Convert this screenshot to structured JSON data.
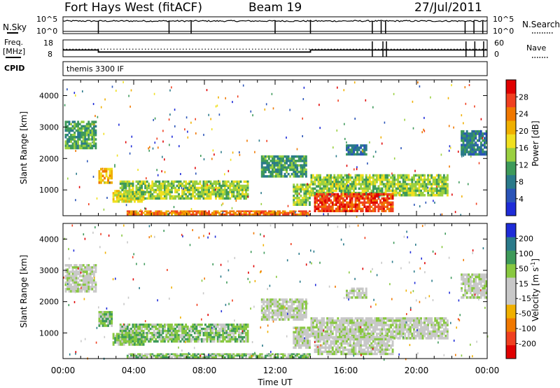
{
  "header": {
    "title": "Fort Hays West (fitACF)",
    "beam": "Beam 19",
    "date": "27/Jul/2011"
  },
  "top_panels": {
    "sky": {
      "left_label": "N.Sky",
      "right_label": "N.Search",
      "ytick_top": "10^5",
      "ytick_bottom": "10^0"
    },
    "freq": {
      "left_label_1": "Freq.",
      "left_label_2": "[MHz]",
      "left_ticks": [
        "18",
        "8"
      ],
      "right_label": "Nave",
      "right_ticks": [
        "60",
        "0"
      ]
    },
    "cpid": {
      "left_label": "CPID",
      "text": "themis 3300 IF"
    }
  },
  "colors": {
    "power_scale": [
      "#0000ff",
      "#1e48b4",
      "#2a7a8a",
      "#3e9a5a",
      "#9ad040",
      "#f0e020",
      "#f0b000",
      "#f07800",
      "#f04020",
      "#e00000"
    ],
    "velocity_scale": [
      "#0000ff",
      "#1e48b4",
      "#2a7a8a",
      "#3e9a5a",
      "#88c840",
      "#c8c8c8",
      "#f0b000",
      "#f07800",
      "#f04020",
      "#e00000"
    ]
  },
  "chart_data": [
    {
      "type": "line",
      "panel": "N.Sky / N.Search",
      "ylim_labels": [
        "10^0",
        "10^5"
      ],
      "x_hours": [
        0,
        2,
        6,
        7.25,
        12,
        14,
        17.5,
        18,
        18.25,
        22.75,
        23.25,
        23.75,
        24
      ],
      "series": [
        {
          "name": "N.Sky",
          "values": [
            4,
            4,
            4,
            4,
            4,
            4,
            4,
            4,
            4,
            4,
            4,
            4,
            4
          ]
        },
        {
          "name": "N.Search",
          "values": [
            0.3,
            0.3,
            0.3,
            0.3,
            0.3,
            0.3,
            0.3,
            0.3,
            0.3,
            0.3,
            0.3,
            0.3,
            0.3
          ]
        }
      ]
    },
    {
      "type": "line",
      "panel": "Freq. / Nave",
      "xlim": [
        "00:00",
        "24:00"
      ],
      "freq_ylim": [
        8,
        18
      ],
      "nave_ylim": [
        0,
        60
      ],
      "series": [
        {
          "name": "Freq. [MHz]",
          "x_hours": [
            0,
            2,
            2,
            14,
            14,
            24
          ],
          "values": [
            12,
            12,
            10.8,
            10.8,
            12,
            12
          ]
        },
        {
          "name": "Nave",
          "x_hours": [
            0,
            24
          ],
          "values": [
            27,
            27
          ]
        }
      ]
    },
    {
      "type": "heatmap",
      "panel": "Power",
      "xlabel": "Time UT",
      "ylabel": "Slant Range [km]",
      "colorbar_label": "Power [dB]",
      "colorbar_ticks": [
        "28",
        "24",
        "20",
        "16",
        "12",
        "8",
        "4"
      ],
      "xticks": [
        "00:00",
        "04:00",
        "08:00",
        "12:00",
        "16:00",
        "20:00",
        "00:00"
      ],
      "yticks": [
        1000,
        2000,
        3000,
        4000
      ],
      "xlim_hours": [
        0,
        24
      ],
      "ylim": [
        180,
        4500
      ],
      "regions": [
        {
          "t0": 0.1,
          "t1": 1.9,
          "r0": 2300,
          "r1": 3200,
          "level": 3
        },
        {
          "t0": 2.0,
          "t1": 2.8,
          "r0": 1200,
          "r1": 1700,
          "level": 6
        },
        {
          "t0": 2.8,
          "t1": 4.6,
          "r0": 600,
          "r1": 1000,
          "level": 5
        },
        {
          "t0": 3.2,
          "t1": 10.5,
          "r0": 700,
          "r1": 1300,
          "level": 4
        },
        {
          "t0": 3.6,
          "t1": 14.0,
          "r0": 200,
          "r1": 350,
          "level": 7
        },
        {
          "t0": 11.2,
          "t1": 13.8,
          "r0": 1400,
          "r1": 2100,
          "level": 3
        },
        {
          "t0": 13.0,
          "t1": 14.0,
          "r0": 500,
          "r1": 1200,
          "level": 4
        },
        {
          "t0": 14.0,
          "t1": 21.8,
          "r0": 800,
          "r1": 1500,
          "level": 4
        },
        {
          "t0": 14.2,
          "t1": 18.7,
          "r0": 300,
          "r1": 900,
          "level": 8
        },
        {
          "t0": 16.0,
          "t1": 17.2,
          "r0": 2100,
          "r1": 2450,
          "level": 2
        },
        {
          "t0": 22.5,
          "t1": 24.0,
          "r0": 2100,
          "r1": 2900,
          "level": 2
        }
      ]
    },
    {
      "type": "heatmap",
      "panel": "Velocity",
      "xlabel": "Time UT",
      "ylabel": "Slant Range [km]",
      "colorbar_label": "Velocity [m s^-1]",
      "colorbar_ticks": [
        "200",
        "100",
        "50",
        "15",
        "-15",
        "-50",
        "-100",
        "-200"
      ],
      "xticks": [
        "00:00",
        "04:00",
        "08:00",
        "12:00",
        "16:00",
        "20:00",
        "00:00"
      ],
      "yticks": [
        1000,
        2000,
        3000,
        4000
      ],
      "xlim_hours": [
        0,
        24
      ],
      "ylim": [
        180,
        4500
      ],
      "regions": [
        {
          "t0": 0.1,
          "t1": 1.9,
          "r0": 2300,
          "r1": 3200,
          "level": 5
        },
        {
          "t0": 2.0,
          "t1": 2.8,
          "r0": 1200,
          "r1": 1700,
          "level": 6
        },
        {
          "t0": 2.8,
          "t1": 4.6,
          "r0": 600,
          "r1": 1000,
          "level": 6
        },
        {
          "t0": 3.2,
          "t1": 10.5,
          "r0": 700,
          "r1": 1300,
          "level": 6
        },
        {
          "t0": 3.6,
          "t1": 14.0,
          "r0": 200,
          "r1": 350,
          "level": 6
        },
        {
          "t0": 11.2,
          "t1": 13.8,
          "r0": 1400,
          "r1": 2100,
          "level": 5
        },
        {
          "t0": 13.0,
          "t1": 14.0,
          "r0": 500,
          "r1": 1200,
          "level": 5
        },
        {
          "t0": 14.0,
          "t1": 21.8,
          "r0": 800,
          "r1": 1500,
          "level": 5
        },
        {
          "t0": 14.2,
          "t1": 18.7,
          "r0": 300,
          "r1": 900,
          "level": 5
        },
        {
          "t0": 16.0,
          "t1": 17.2,
          "r0": 2100,
          "r1": 2450,
          "level": 5
        },
        {
          "t0": 22.5,
          "t1": 24.0,
          "r0": 2100,
          "r1": 2900,
          "level": 5
        }
      ]
    }
  ]
}
